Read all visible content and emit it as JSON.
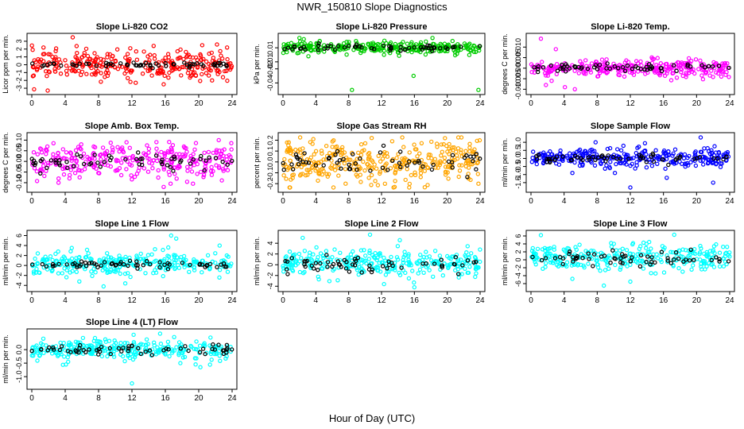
{
  "figure": {
    "title": "NWR_150810  Slope Diagnostics",
    "xlabel": "Hour of Day (UTC)"
  },
  "colors": {
    "red": "#ff0000",
    "green": "#00cc00",
    "magenta": "#ff00ff",
    "orange": "#ffa500",
    "blue": "#0000ff",
    "cyan": "#00ffff",
    "black": "#000000"
  },
  "chart_data": [
    {
      "type": "scatter",
      "title": "Slope Li-820 CO2",
      "xlabel": "Hour of Day (UTC)",
      "ylabel": "Licor ppm per min.",
      "xlim": [
        0,
        24
      ],
      "ylim": [
        -3.4,
        3.6
      ],
      "xticks": [
        "0",
        "4",
        "8",
        "12",
        "16",
        "20",
        "24"
      ],
      "yticks": [
        "-3",
        "-2",
        "-1",
        "0",
        "1",
        "2",
        "3"
      ],
      "series": [
        {
          "name": "",
          "color": "#ff0000",
          "style": "scatter",
          "center": 0.0,
          "spread": 0.9,
          "n": 300
        },
        {
          "name": "",
          "color": "#000000",
          "style": "scatter",
          "center": 0.0,
          "spread": 0.15,
          "n": 60
        }
      ],
      "outliers": [
        [
          1.4,
          2.2
        ],
        [
          1.9,
          -3.3
        ],
        [
          4.9,
          3.5
        ],
        [
          11.8,
          2.1
        ],
        [
          14.6,
          2.4
        ],
        [
          15.8,
          -2.5
        ],
        [
          23.4,
          2.2
        ]
      ],
      "grid": false,
      "legend": "none"
    },
    {
      "type": "scatter",
      "title": "Slope Li-820 Pressure",
      "xlabel": "Hour of Day (UTC)",
      "ylabel": "kPa per min.",
      "xlim": [
        0,
        24
      ],
      "ylim": [
        -0.052,
        0.026
      ],
      "xticks": [
        "0",
        "4",
        "8",
        "12",
        "16",
        "20",
        "24"
      ],
      "yticks": [
        "-0.04",
        "-0.02",
        "-0.01",
        "0.01"
      ],
      "series": [
        {
          "name": "",
          "color": "#00cc00",
          "style": "scatter",
          "center": 0.01,
          "spread": 0.004,
          "n": 300
        },
        {
          "name": "",
          "color": "#000000",
          "style": "scatter",
          "center": 0.01,
          "spread": 0.002,
          "n": 60
        }
      ],
      "outliers": [
        [
          2.0,
          0.024
        ],
        [
          8.4,
          -0.05
        ],
        [
          15.9,
          -0.03
        ],
        [
          18.2,
          0.024
        ],
        [
          23.8,
          -0.05
        ],
        [
          3.1,
          -0.002
        ],
        [
          12.3,
          0.0
        ]
      ],
      "grid": false,
      "legend": "none"
    },
    {
      "type": "scatter",
      "title": "Slope Li-820 Temp.",
      "xlabel": "Hour of Day (UTC)",
      "ylabel": "degrees C per min.",
      "xlim": [
        0,
        24
      ],
      "ylim": [
        -0.011,
        0.015
      ],
      "xticks": [
        "0",
        "4",
        "8",
        "12",
        "16",
        "20",
        "24"
      ],
      "yticks": [
        "-0.010",
        "-0.005",
        "0.000",
        "0.005",
        "0.010"
      ],
      "series": [
        {
          "name": "",
          "color": "#ff00ff",
          "style": "scatter",
          "center": 0.0,
          "spread": 0.002,
          "n": 300
        },
        {
          "name": "",
          "color": "#000000",
          "style": "scatter",
          "center": 0.0,
          "spread": 0.001,
          "n": 60
        }
      ],
      "outliers": [
        [
          1.2,
          0.014
        ],
        [
          1.8,
          -0.008
        ],
        [
          3.0,
          0.009
        ],
        [
          4.1,
          -0.009
        ],
        [
          5.3,
          -0.01
        ],
        [
          2.5,
          -0.006
        ]
      ],
      "grid": false,
      "legend": "none"
    },
    {
      "type": "scatter",
      "title": "Slope Amb. Box Temp.",
      "xlabel": "Hour of Day (UTC)",
      "ylabel": "degrees C per min.",
      "xlim": [
        0,
        24
      ],
      "ylim": [
        -0.13,
        0.12
      ],
      "xticks": [
        "0",
        "4",
        "8",
        "12",
        "16",
        "20",
        "24"
      ],
      "yticks": [
        "-0.10",
        "-0.05",
        "0.00",
        "0.05",
        "0.10"
      ],
      "series": [
        {
          "name": "",
          "color": "#ff00ff",
          "style": "scatter",
          "center": 0.0,
          "spread": 0.04,
          "n": 300
        },
        {
          "name": "",
          "color": "#000000",
          "style": "scatter",
          "center": 0.0,
          "spread": 0.02,
          "n": 60
        }
      ],
      "outliers": [
        [
          15.8,
          -0.12
        ],
        [
          22.4,
          0.1
        ],
        [
          3.2,
          -0.1
        ]
      ],
      "grid": false,
      "legend": "none"
    },
    {
      "type": "scatter",
      "title": "Slope Gas Stream RH",
      "xlabel": "Hour of Day (UTC)",
      "ylabel": "percent per min.",
      "xlim": [
        0,
        24
      ],
      "ylim": [
        -0.25,
        0.24
      ],
      "xticks": [
        "0",
        "4",
        "8",
        "12",
        "16",
        "20",
        "24"
      ],
      "yticks": [
        "-0.2",
        "-0.1",
        "0.0",
        "0.1",
        "0.2"
      ],
      "series": [
        {
          "name": "",
          "color": "#ffa500",
          "style": "scatter",
          "center": 0.0,
          "spread": 0.1,
          "n": 340
        },
        {
          "name": "",
          "color": "#000000",
          "style": "scatter",
          "center": 0.0,
          "spread": 0.06,
          "n": 60
        }
      ],
      "outliers": [
        [
          10.8,
          0.22
        ],
        [
          13.6,
          -0.23
        ],
        [
          3.7,
          0.21
        ],
        [
          23.8,
          -0.2
        ]
      ],
      "grid": false,
      "legend": "none"
    },
    {
      "type": "scatter",
      "title": "Slope Sample Flow",
      "xlabel": "Hour of Day (UTC)",
      "ylabel": "ml/min per min.",
      "xlim": [
        0,
        24
      ],
      "ylim": [
        -1.9,
        1.4
      ],
      "xticks": [
        "0",
        "4",
        "8",
        "12",
        "16",
        "20",
        "24"
      ],
      "yticks": [
        "-1.5",
        "-1.0",
        "-0.5",
        "0.0",
        "0.5",
        "1.0"
      ],
      "series": [
        {
          "name": "",
          "color": "#0000ff",
          "style": "scatter",
          "center": 0.0,
          "spread": 0.3,
          "n": 300
        },
        {
          "name": "",
          "color": "#000000",
          "style": "scatter",
          "center": 0.0,
          "spread": 0.12,
          "n": 60
        }
      ],
      "outliers": [
        [
          12.0,
          -1.8
        ],
        [
          20.5,
          1.3
        ],
        [
          7.8,
          1.0
        ],
        [
          16.4,
          -1.2
        ],
        [
          22.0,
          -1.5
        ],
        [
          5.0,
          -0.9
        ]
      ],
      "grid": false,
      "legend": "none"
    },
    {
      "type": "scatter",
      "title": "Slope Line 1 Flow",
      "xlabel": "Hour of Day (UTC)",
      "ylabel": "ml/min per min.",
      "xlim": [
        0,
        24
      ],
      "ylim": [
        -4.6,
        6.4
      ],
      "xticks": [
        "0",
        "4",
        "8",
        "12",
        "16",
        "20",
        "24"
      ],
      "yticks": [
        "-4",
        "-2",
        "0",
        "2",
        "4",
        "6"
      ],
      "series": [
        {
          "name": "",
          "color": "#00ffff",
          "style": "scatter",
          "center": 0.5,
          "spread": 1.1,
          "n": 300
        },
        {
          "name": "",
          "color": "#000000",
          "style": "scatter",
          "center": 0.2,
          "spread": 0.4,
          "n": 60
        }
      ],
      "outliers": [
        [
          16.7,
          6.0
        ],
        [
          17.3,
          5.4
        ],
        [
          8.6,
          -4.2
        ],
        [
          11.2,
          -3.6
        ],
        [
          22.5,
          4.0
        ]
      ],
      "grid": false,
      "legend": "none"
    },
    {
      "type": "scatter",
      "title": "Slope Line 2 Flow",
      "xlabel": "Hour of Day (UTC)",
      "ylabel": "ml/min per min.",
      "xlim": [
        0,
        24
      ],
      "ylim": [
        -4.4,
        5.8
      ],
      "xticks": [
        "0",
        "4",
        "8",
        "12",
        "16",
        "20",
        "24"
      ],
      "yticks": [
        "-4",
        "-2",
        "0",
        "2",
        "4"
      ],
      "series": [
        {
          "name": "",
          "color": "#00ffff",
          "style": "scatter",
          "center": 0.3,
          "spread": 1.2,
          "n": 300
        },
        {
          "name": "",
          "color": "#000000",
          "style": "scatter",
          "center": 0.0,
          "spread": 0.8,
          "n": 60
        }
      ],
      "outliers": [
        [
          10.6,
          5.6
        ],
        [
          16.0,
          -4.2
        ],
        [
          2.4,
          5.0
        ],
        [
          12.3,
          -3.6
        ]
      ],
      "grid": false,
      "legend": "none"
    },
    {
      "type": "scatter",
      "title": "Slope Line 3 Flow",
      "xlabel": "Hour of Day (UTC)",
      "ylabel": "ml/min per min.",
      "xlim": [
        0,
        24
      ],
      "ylim": [
        -7.2,
        6.6
      ],
      "xticks": [
        "0",
        "4",
        "8",
        "12",
        "16",
        "20",
        "24"
      ],
      "yticks": [
        "-6",
        "-4",
        "-2",
        "0",
        "2",
        "4",
        "6"
      ],
      "series": [
        {
          "name": "",
          "color": "#00ffff",
          "style": "scatter",
          "center": 0.5,
          "spread": 1.6,
          "n": 300
        },
        {
          "name": "",
          "color": "#000000",
          "style": "scatter",
          "center": 0.3,
          "spread": 1.0,
          "n": 60
        }
      ],
      "outliers": [
        [
          1.2,
          6.2
        ],
        [
          12.0,
          -5.5
        ],
        [
          17.3,
          6.3
        ],
        [
          8.8,
          -6.5
        ],
        [
          5.0,
          -4.8
        ]
      ],
      "grid": false,
      "legend": "none"
    },
    {
      "type": "scatter",
      "title": "Slope Line 4 (LT) Flow",
      "xlabel": "Hour of Day (UTC)",
      "ylabel": "ml/min per min.",
      "xlim": [
        0,
        24
      ],
      "ylim": [
        -1.35,
        0.65
      ],
      "xticks": [
        "0",
        "4",
        "8",
        "12",
        "16",
        "20",
        "24"
      ],
      "yticks": [
        "-1.0",
        "-0.5",
        "0.0"
      ],
      "series": [
        {
          "name": "",
          "color": "#00ffff",
          "style": "scatter",
          "center": 0.0,
          "spread": 0.18,
          "n": 300
        },
        {
          "name": "",
          "color": "#000000",
          "style": "scatter",
          "center": 0.0,
          "spread": 0.1,
          "n": 60
        }
      ],
      "outliers": [
        [
          12.0,
          -1.25
        ],
        [
          20.2,
          -0.65
        ],
        [
          4.1,
          -0.55
        ],
        [
          12.2,
          0.55
        ],
        [
          17.8,
          -0.5
        ]
      ],
      "grid": false,
      "legend": "none"
    }
  ]
}
